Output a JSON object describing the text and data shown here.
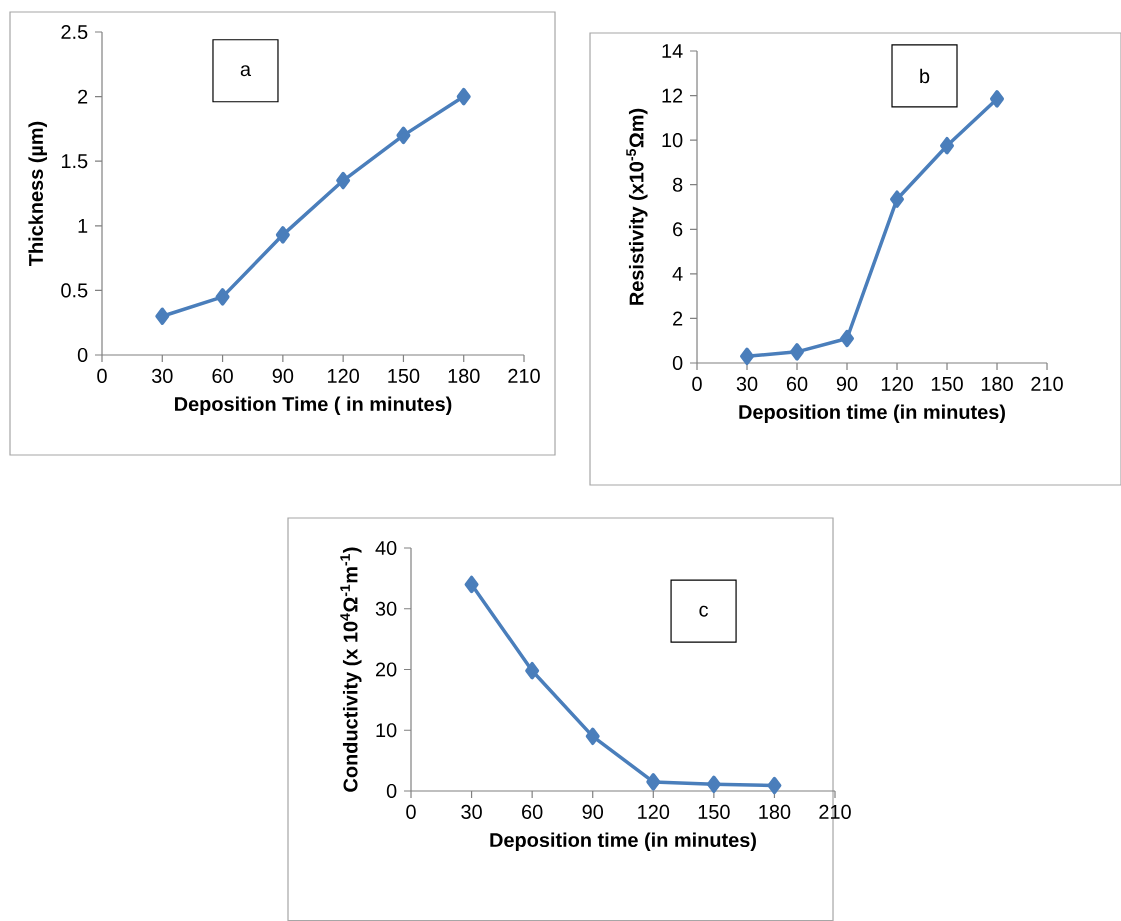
{
  "chart_data": [
    {
      "type": "line",
      "xlabel": "Deposition Time ( in minutes)",
      "ylabel": "Thickness (µm)",
      "annotations": [
        "a"
      ],
      "x": [
        30,
        60,
        90,
        120,
        150,
        180
      ],
      "color": "#4a7ebb",
      "values": [
        0.3,
        0.45,
        0.93,
        1.35,
        1.7,
        2.0
      ],
      "xlim": [
        0,
        210
      ],
      "xticks": [
        0,
        30,
        60,
        90,
        120,
        150,
        180,
        210
      ],
      "ylim": [
        0,
        2.5
      ],
      "yticks": [
        0,
        0.5,
        1,
        1.5,
        2,
        2.5
      ],
      "marker": "diamond",
      "line_style": "solid"
    },
    {
      "type": "line",
      "xlabel": "Deposition time (in minutes)",
      "ylabel": "Resistivity  (x10$^{-5}$Ωm)",
      "annotations": [
        "b"
      ],
      "x": [
        30,
        60,
        90,
        120,
        150,
        180
      ],
      "color": "#4a7ebb",
      "values": [
        0.3,
        0.5,
        1.1,
        7.35,
        9.75,
        11.85
      ],
      "xlim": [
        0,
        210
      ],
      "xticks": [
        0,
        30,
        60,
        90,
        120,
        150,
        180,
        210
      ],
      "ylim": [
        0,
        14
      ],
      "yticks": [
        0,
        2,
        4,
        6,
        8,
        10,
        12,
        14
      ],
      "marker": "diamond",
      "line_style": "solid"
    },
    {
      "type": "line",
      "xlabel": "Deposition time (in minutes)",
      "ylabel": "Conductivity (x 10$^{4}$Ω$^{-1}$m$^{-1}$)",
      "annotations": [
        "c"
      ],
      "x": [
        30,
        60,
        90,
        120,
        150,
        180
      ],
      "color": "#4a7ebb",
      "values": [
        34,
        19.8,
        9,
        1.5,
        1.1,
        0.9
      ],
      "xlim": [
        0,
        210
      ],
      "xticks": [
        0,
        30,
        60,
        90,
        120,
        150,
        180,
        210
      ],
      "ylim": [
        0,
        40
      ],
      "yticks": [
        0,
        10,
        20,
        30,
        40
      ],
      "marker": "diamond",
      "line_style": "solid"
    }
  ]
}
